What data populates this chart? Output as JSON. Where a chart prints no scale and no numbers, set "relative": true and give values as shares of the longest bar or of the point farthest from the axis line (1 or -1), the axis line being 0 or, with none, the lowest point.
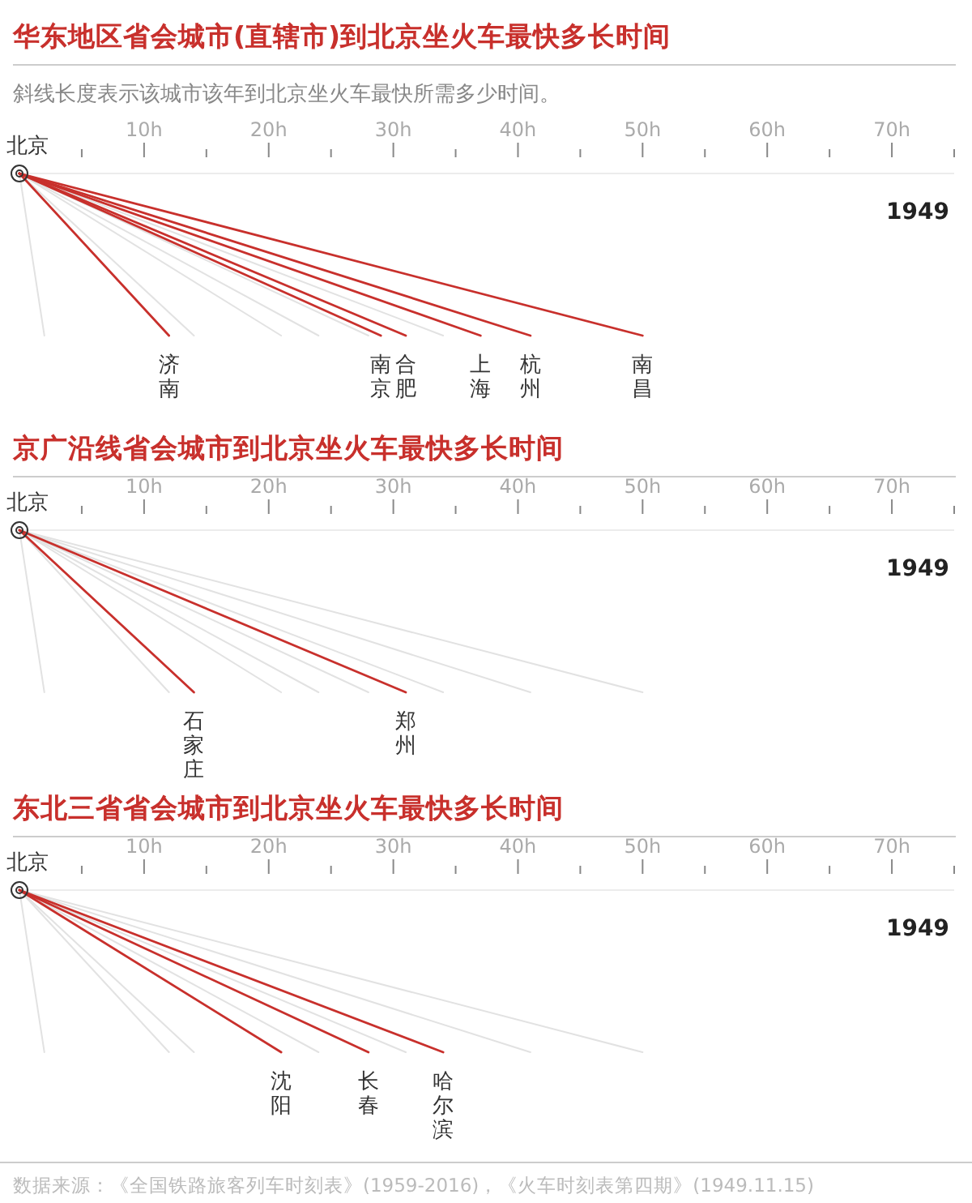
{
  "chart_data": [
    {
      "type": "line",
      "relative": true,
      "title": "华东地区省会城市(直辖市)到北京坐火车最快多长时间",
      "subtitle": "斜线长度表示该城市该年到北京坐火车最快所需多少时间。",
      "xlim": [
        0,
        75
      ],
      "xticks": [
        {
          "value": 5,
          "label": null
        },
        {
          "value": 10,
          "label": "10h"
        },
        {
          "value": 15,
          "label": null
        },
        {
          "value": 20,
          "label": "20h"
        },
        {
          "value": 25,
          "label": null
        },
        {
          "value": 30,
          "label": "30h"
        },
        {
          "value": 35,
          "label": null
        },
        {
          "value": 40,
          "label": "40h"
        },
        {
          "value": 45,
          "label": null
        },
        {
          "value": 50,
          "label": "50h"
        },
        {
          "value": 55,
          "label": null
        },
        {
          "value": 60,
          "label": "60h"
        },
        {
          "value": 65,
          "label": null
        },
        {
          "value": 70,
          "label": "70h"
        },
        {
          "value": 75,
          "label": null
        }
      ],
      "series": [
        {
          "color": "#e2e2e2",
          "x": [
            0,
            2
          ],
          "values": [
            0,
            -1
          ]
        },
        {
          "name": "济南",
          "color": "#c8302c",
          "x": [
            0,
            12
          ],
          "values": [
            0,
            -1
          ]
        },
        {
          "color": "#e2e2e2",
          "x": [
            0,
            14
          ],
          "values": [
            0,
            -1
          ]
        },
        {
          "color": "#e2e2e2",
          "x": [
            0,
            21
          ],
          "values": [
            0,
            -1
          ]
        },
        {
          "color": "#e2e2e2",
          "x": [
            0,
            24
          ],
          "values": [
            0,
            -1
          ]
        },
        {
          "color": "#e2e2e2",
          "x": [
            0,
            28
          ],
          "values": [
            0,
            -1
          ]
        },
        {
          "name": "南京",
          "color": "#c8302c",
          "x": [
            0,
            29
          ],
          "values": [
            0,
            -1
          ]
        },
        {
          "name": "合肥",
          "color": "#c8302c",
          "x": [
            0,
            31
          ],
          "values": [
            0,
            -1
          ]
        },
        {
          "color": "#e2e2e2",
          "x": [
            0,
            34
          ],
          "values": [
            0,
            -1
          ]
        },
        {
          "name": "上海",
          "color": "#c8302c",
          "x": [
            0,
            37
          ],
          "values": [
            0,
            -1
          ]
        },
        {
          "name": "杭州",
          "color": "#c8302c",
          "x": [
            0,
            41
          ],
          "values": [
            0,
            -1
          ]
        },
        {
          "name": "南昌",
          "color": "#c8302c",
          "x": [
            0,
            50
          ],
          "values": [
            0,
            -1
          ]
        }
      ],
      "annotations": [
        "北京",
        "1949"
      ]
    },
    {
      "type": "line",
      "relative": true,
      "title": "京广沿线省会城市到北京坐火车最快多长时间",
      "xlim": [
        0,
        75
      ],
      "xticks": [
        {
          "value": 5,
          "label": null
        },
        {
          "value": 10,
          "label": "10h"
        },
        {
          "value": 15,
          "label": null
        },
        {
          "value": 20,
          "label": "20h"
        },
        {
          "value": 25,
          "label": null
        },
        {
          "value": 30,
          "label": "30h"
        },
        {
          "value": 35,
          "label": null
        },
        {
          "value": 40,
          "label": "40h"
        },
        {
          "value": 45,
          "label": null
        },
        {
          "value": 50,
          "label": "50h"
        },
        {
          "value": 55,
          "label": null
        },
        {
          "value": 60,
          "label": "60h"
        },
        {
          "value": 65,
          "label": null
        },
        {
          "value": 70,
          "label": "70h"
        },
        {
          "value": 75,
          "label": null
        }
      ],
      "series": [
        {
          "color": "#e2e2e2",
          "x": [
            0,
            2
          ],
          "values": [
            0,
            -1
          ]
        },
        {
          "color": "#e2e2e2",
          "x": [
            0,
            12
          ],
          "values": [
            0,
            -1
          ]
        },
        {
          "name": "石家庄",
          "color": "#c8302c",
          "x": [
            0,
            14
          ],
          "values": [
            0,
            -1
          ]
        },
        {
          "color": "#e2e2e2",
          "x": [
            0,
            21
          ],
          "values": [
            0,
            -1
          ]
        },
        {
          "color": "#e2e2e2",
          "x": [
            0,
            24
          ],
          "values": [
            0,
            -1
          ]
        },
        {
          "color": "#e2e2e2",
          "x": [
            0,
            28
          ],
          "values": [
            0,
            -1
          ]
        },
        {
          "name": "郑州",
          "color": "#c8302c",
          "x": [
            0,
            31
          ],
          "values": [
            0,
            -1
          ]
        },
        {
          "color": "#e2e2e2",
          "x": [
            0,
            34
          ],
          "values": [
            0,
            -1
          ]
        },
        {
          "color": "#e2e2e2",
          "x": [
            0,
            41
          ],
          "values": [
            0,
            -1
          ]
        },
        {
          "color": "#e2e2e2",
          "x": [
            0,
            50
          ],
          "values": [
            0,
            -1
          ]
        }
      ],
      "annotations": [
        "北京",
        "1949"
      ]
    },
    {
      "type": "line",
      "relative": true,
      "title": "东北三省省会城市到北京坐火车最快多长时间",
      "xlim": [
        0,
        75
      ],
      "xticks": [
        {
          "value": 5,
          "label": null
        },
        {
          "value": 10,
          "label": "10h"
        },
        {
          "value": 15,
          "label": null
        },
        {
          "value": 20,
          "label": "20h"
        },
        {
          "value": 25,
          "label": null
        },
        {
          "value": 30,
          "label": "30h"
        },
        {
          "value": 35,
          "label": null
        },
        {
          "value": 40,
          "label": "40h"
        },
        {
          "value": 45,
          "label": null
        },
        {
          "value": 50,
          "label": "50h"
        },
        {
          "value": 55,
          "label": null
        },
        {
          "value": 60,
          "label": "60h"
        },
        {
          "value": 65,
          "label": null
        },
        {
          "value": 70,
          "label": "70h"
        },
        {
          "value": 75,
          "label": null
        }
      ],
      "series": [
        {
          "color": "#e2e2e2",
          "x": [
            0,
            2
          ],
          "values": [
            0,
            -1
          ]
        },
        {
          "color": "#e2e2e2",
          "x": [
            0,
            12
          ],
          "values": [
            0,
            -1
          ]
        },
        {
          "color": "#e2e2e2",
          "x": [
            0,
            14
          ],
          "values": [
            0,
            -1
          ]
        },
        {
          "name": "沈阳",
          "color": "#c8302c",
          "x": [
            0,
            21
          ],
          "values": [
            0,
            -1
          ]
        },
        {
          "color": "#e2e2e2",
          "x": [
            0,
            24
          ],
          "values": [
            0,
            -1
          ]
        },
        {
          "name": "长春",
          "color": "#c8302c",
          "x": [
            0,
            28
          ],
          "values": [
            0,
            -1
          ]
        },
        {
          "color": "#e2e2e2",
          "x": [
            0,
            31
          ],
          "values": [
            0,
            -1
          ]
        },
        {
          "name": "哈尔滨",
          "color": "#c8302c",
          "x": [
            0,
            34
          ],
          "values": [
            0,
            -1
          ]
        },
        {
          "color": "#e2e2e2",
          "x": [
            0,
            41
          ],
          "values": [
            0,
            -1
          ]
        },
        {
          "color": "#e2e2e2",
          "x": [
            0,
            50
          ],
          "values": [
            0,
            -1
          ]
        }
      ],
      "annotations": [
        "北京",
        "1949",
        "数据来源：《全国铁路旅客列车时刻表》(1959-2016)，《火车时刻表第四期》(1949.11.15)"
      ]
    }
  ]
}
